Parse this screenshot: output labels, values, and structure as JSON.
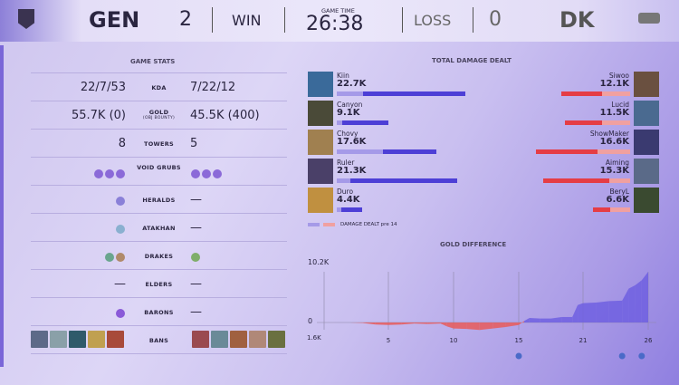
{
  "header": {
    "team_left": "GEN",
    "score_left": "2",
    "result_left": "WIN",
    "game_time_label": "GAME TIME",
    "game_time": "26:38",
    "result_right": "LOSS",
    "score_right": "0",
    "team_right": "DK",
    "left_logo": "gen-g-logo",
    "right_logo": "lck-logo"
  },
  "stats": {
    "title": "GAME STATS",
    "rows": [
      {
        "label": "KDA",
        "left": "22/7/53",
        "right": "7/22/12"
      },
      {
        "label": "GOLD",
        "sublabel": "(OBJ BOUNTY)",
        "left": "55.7K (0)",
        "right": "45.5K (400)"
      },
      {
        "label": "TOWERS",
        "left": "8",
        "right": "5"
      },
      {
        "label": "VOID GRUBS",
        "left_count": 3,
        "right_count": 3
      },
      {
        "label": "HERALDS",
        "left_count": 1,
        "right": "—"
      },
      {
        "label": "ATAKHAN",
        "left_count": 1,
        "right": "—"
      },
      {
        "label": "DRAKES",
        "left_icons": [
          "ocean-drake",
          "mountain-drake"
        ],
        "right_icons": [
          "chemtech-drake"
        ]
      },
      {
        "label": "ELDERS",
        "left": "—",
        "right": "—"
      },
      {
        "label": "BARONS",
        "left_count": 1,
        "right": "—"
      },
      {
        "label": "BANS",
        "left_count": 5,
        "right_count": 5
      }
    ]
  },
  "colors": {
    "blue": "#4d3fd6",
    "blue_light": "#a59ae8",
    "red": "#e53d45",
    "red_light": "#f0a0a0",
    "grub": "#8b6ad8"
  },
  "damage": {
    "title": "TOTAL DAMAGE DEALT",
    "legend": "DAMAGE DEALT pre 14",
    "left": [
      {
        "name": "Kiin",
        "value": "22.7K",
        "total": 22.7,
        "pre14": 4.7
      },
      {
        "name": "Canyon",
        "value": "9.1K",
        "total": 9.1,
        "pre14": 1.0
      },
      {
        "name": "Chovy",
        "value": "17.6K",
        "total": 17.6,
        "pre14": 8.2
      },
      {
        "name": "Ruler",
        "value": "21.3K",
        "total": 21.3,
        "pre14": 2.4
      },
      {
        "name": "Duro",
        "value": "4.4K",
        "total": 4.4,
        "pre14": 0.8
      }
    ],
    "right": [
      {
        "name": "Siwoo",
        "value": "12.1K",
        "total": 12.1,
        "pre14": 5.0
      },
      {
        "name": "Lucid",
        "value": "11.5K",
        "total": 11.5,
        "pre14": 5.0
      },
      {
        "name": "ShowMaker",
        "value": "16.6K",
        "total": 16.6,
        "pre14": 5.8
      },
      {
        "name": "Aiming",
        "value": "15.3K",
        "total": 15.3,
        "pre14": 3.7
      },
      {
        "name": "BeryL",
        "value": "6.6K",
        "total": 6.6,
        "pre14": 3.5
      }
    ]
  },
  "chart_data": {
    "type": "area",
    "title": "GOLD DIFFERENCE",
    "ymax_label": "10.2K",
    "zero_label": "0",
    "ymin_label": "1.6K",
    "ylim": [
      -1.6,
      10.2
    ],
    "xticks": [
      5,
      10,
      15,
      21,
      26
    ],
    "x": [
      0,
      1,
      2,
      3,
      4,
      5,
      6,
      7,
      8,
      9,
      9.5,
      10,
      11,
      12,
      13,
      14,
      15,
      15.5,
      16,
      17,
      18,
      19,
      20,
      20.5,
      21,
      22,
      23,
      24,
      24.5,
      25,
      25.5,
      26
    ],
    "y": [
      0,
      0,
      0,
      -0.1,
      -0.4,
      -0.5,
      -0.4,
      -0.2,
      -0.3,
      -0.2,
      -0.8,
      -1.2,
      -1.3,
      -1.5,
      -1.2,
      -0.9,
      -0.5,
      0.3,
      0.9,
      0.8,
      0.8,
      1.1,
      1.1,
      3.5,
      3.9,
      4.0,
      4.3,
      4.4,
      6.8,
      7.5,
      8.5,
      10.2
    ],
    "events": [
      {
        "time": 15,
        "icon": "herald-icon"
      },
      {
        "time": 24,
        "icon": "atakhan-icon"
      },
      {
        "time": 25.5,
        "icon": "baron-icon"
      }
    ]
  }
}
